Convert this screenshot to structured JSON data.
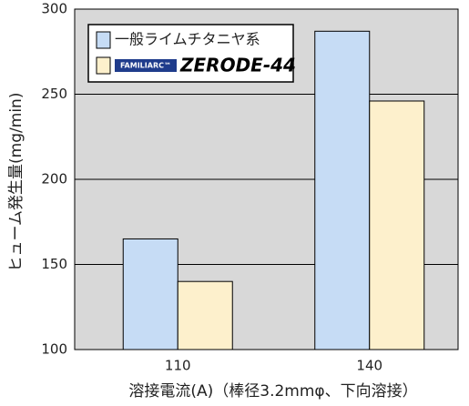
{
  "chart_data": {
    "type": "bar",
    "x_label": "溶接電流(A)（棒径3.2mmφ、下向溶接）",
    "y_label": "ヒューム発生量(mg/min)",
    "categories": [
      "110",
      "140"
    ],
    "series": [
      {
        "name": "一般ライムチタニヤ系",
        "color": "#c6dcf5",
        "values": [
          165,
          287
        ]
      },
      {
        "name": "ZERODE-44",
        "brand": "FAMILIARC™",
        "color": "#fdf0cc",
        "values": [
          140,
          246
        ]
      }
    ],
    "ylim": [
      100,
      300
    ],
    "yticks": [
      100,
      150,
      200,
      250,
      300
    ],
    "grid": true
  }
}
